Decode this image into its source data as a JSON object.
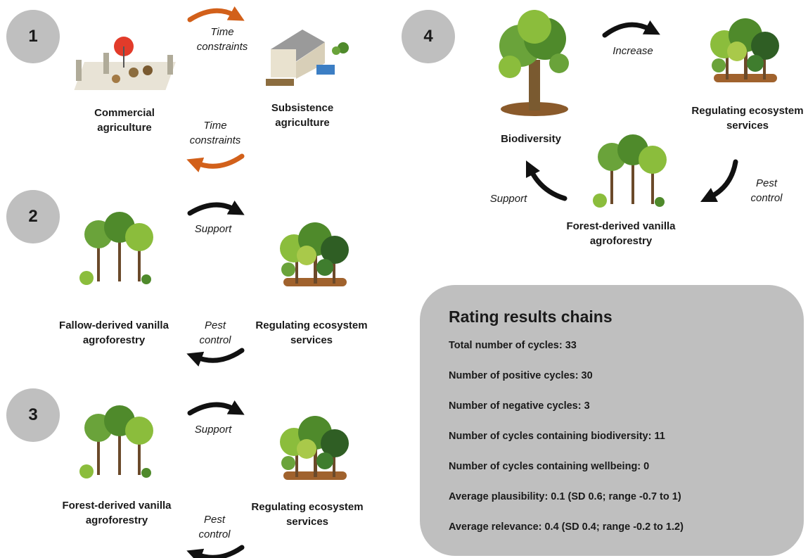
{
  "panels": [
    {
      "number": "1",
      "nodes": [
        "Commercial agriculture",
        "Subsistence agriculture"
      ],
      "edges": [
        "Time constraints",
        "Time constraints"
      ]
    },
    {
      "number": "2",
      "nodes": [
        "Fallow-derived vanilla agroforestry",
        "Regulating ecosystem services"
      ],
      "edges": [
        "Support",
        "Pest control"
      ]
    },
    {
      "number": "3",
      "nodes": [
        "Forest-derived vanilla agroforestry",
        "Regulating ecosystem services"
      ],
      "edges": [
        "Support",
        "Pest control"
      ]
    },
    {
      "number": "4",
      "nodes": [
        "Biodiversity",
        "Regulating ecosystem services",
        "Forest-derived vanilla agroforestry"
      ],
      "edges": [
        "Increase",
        "Pest control",
        "Support"
      ]
    }
  ],
  "rating": {
    "title": "Rating results chains",
    "items": [
      "Total number of cycles: 33",
      "Number of positive cycles: 30",
      "Number of negative cycles: 3",
      "Number of cycles containing biodiversity: 11",
      "Number of cycles containing wellbeing: 0",
      "Average plausibility: 0.1 (SD 0.6; range -0.7 to 1)",
      "Average relevance: 0.4 (SD 0.4; range -0.2 to 1.2)"
    ]
  }
}
